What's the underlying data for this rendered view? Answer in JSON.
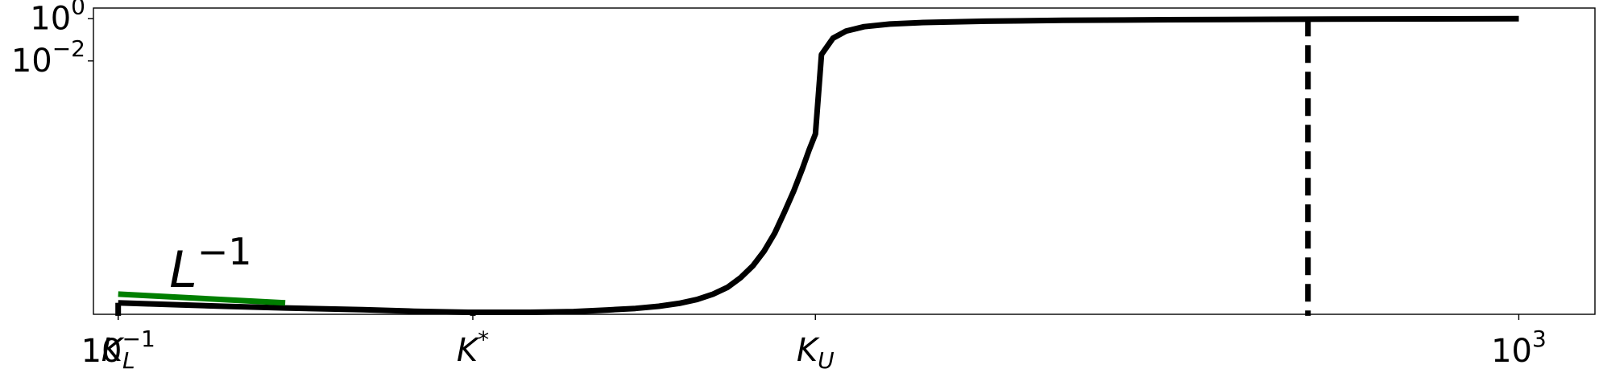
{
  "chart_data": {
    "type": "line",
    "title": "",
    "xlabel": "",
    "ylabel": "",
    "x_scale": "log",
    "y_scale": "log",
    "grid": false,
    "x_range": [
      0.085,
      1650
    ],
    "y_range": [
      1e-14,
      3.2
    ],
    "x_ticks": [
      {
        "value": 0.1,
        "base": "10",
        "exp": "−1"
      },
      {
        "value": 1000,
        "base": "10",
        "exp": "3"
      }
    ],
    "x_named_ticks": [
      {
        "value": 0.1,
        "main": "K",
        "sub": "L",
        "sup": ""
      },
      {
        "value": 1.03,
        "main": "K",
        "sub": "",
        "sup": "*"
      },
      {
        "value": 9.8,
        "main": "K",
        "sub": "U",
        "sup": ""
      }
    ],
    "y_ticks": [
      {
        "value": 1,
        "base": "10",
        "exp": "0"
      },
      {
        "value": 0.01,
        "base": "10",
        "exp": "−2"
      }
    ],
    "series": [
      {
        "style": "solid",
        "color": "#000000",
        "points": [
          [
            0.1,
            3.5e-14
          ],
          [
            0.15,
            2.8e-14
          ],
          [
            0.2,
            2.4e-14
          ],
          [
            0.3,
            2e-14
          ],
          [
            0.5,
            1.65e-14
          ],
          [
            0.7,
            1.4e-14
          ],
          [
            1.0,
            1.25e-14
          ],
          [
            1.5,
            1.25e-14
          ],
          [
            2.0,
            1.35e-14
          ],
          [
            2.5,
            1.6e-14
          ],
          [
            3.0,
            1.9e-14
          ],
          [
            3.5,
            2.4e-14
          ],
          [
            4.0,
            3.3e-14
          ],
          [
            4.5,
            5e-14
          ],
          [
            5.0,
            9e-14
          ],
          [
            5.5,
            1.9e-13
          ],
          [
            6.0,
            5.5e-13
          ],
          [
            6.5,
            2e-12
          ],
          [
            7.0,
            1e-11
          ],
          [
            7.5,
            7e-11
          ],
          [
            8.0,
            7e-10
          ],
          [
            8.5,
            7e-09
          ],
          [
            9.0,
            8e-08
          ],
          [
            9.4,
            6e-07
          ],
          [
            9.8,
            3.5e-06
          ],
          [
            10.2,
            0.02
          ],
          [
            11,
            0.12
          ],
          [
            12,
            0.26
          ],
          [
            13.5,
            0.42
          ],
          [
            16,
            0.56
          ],
          [
            20,
            0.66
          ],
          [
            30,
            0.76
          ],
          [
            50,
            0.84
          ],
          [
            100,
            0.9
          ],
          [
            200,
            0.94
          ],
          [
            400,
            0.97
          ],
          [
            1000,
            1.0
          ]
        ]
      },
      {
        "style": "solid",
        "color": "#007f00",
        "points": [
          [
            0.1,
            9e-14
          ],
          [
            0.3,
            3.5e-14
          ]
        ]
      }
    ],
    "vertical_lines": [
      {
        "x": 0.1,
        "y_from": 3.5e-14,
        "y_to": 8.5e-15,
        "style": "solid"
      },
      {
        "x": 1.03,
        "y_from": 1.25e-14,
        "y_to": 8.5e-15,
        "style": "solid"
      },
      {
        "x": 250,
        "y_from": 1.0,
        "y_to": 8.5e-15,
        "style": "dashed"
      }
    ],
    "annotations": [
      {
        "text": "L",
        "sup": "−1",
        "x": 0.14,
        "y": 2e-13
      }
    ]
  }
}
